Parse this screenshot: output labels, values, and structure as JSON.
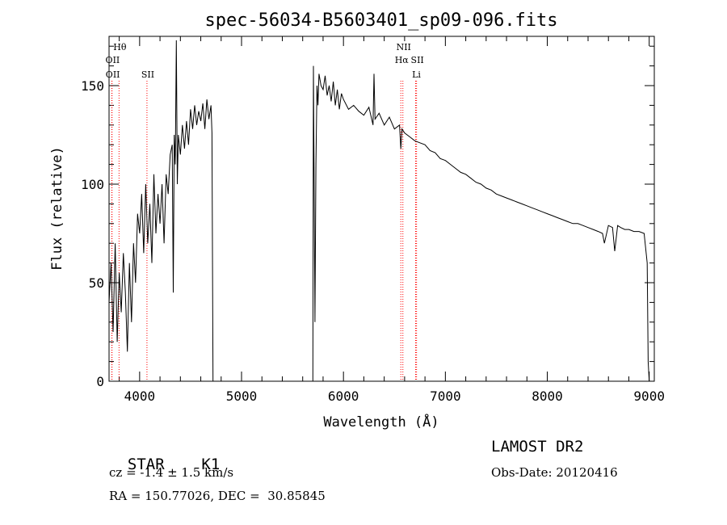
{
  "chart_data": {
    "type": "line",
    "title": "spec-56034-B5603401_sp09-096.fits",
    "xlabel": "Wavelength (Å)",
    "ylabel": "Flux (relative)",
    "xlim": [
      3700,
      9050
    ],
    "ylim": [
      0,
      175
    ],
    "xticks": [
      "4000",
      "5000",
      "6000",
      "7000",
      "8000",
      "9000"
    ],
    "yticks": [
      "0",
      "50",
      "100",
      "150"
    ],
    "grid": false,
    "series": [
      {
        "x": [
          3700,
          3720,
          3740,
          3760,
          3780,
          3800,
          3820,
          3840,
          3860,
          3880,
          3900,
          3920,
          3940,
          3960,
          3980,
          4000,
          4020,
          4040,
          4060,
          4080,
          4100,
          4120,
          4140,
          4160,
          4180,
          4200,
          4220,
          4240,
          4260,
          4280,
          4300,
          4320,
          4330,
          4340,
          4350,
          4360,
          4370,
          4380,
          4400,
          4420,
          4440,
          4460,
          4480,
          4500,
          4520,
          4540,
          4560,
          4580,
          4600,
          4620,
          4640,
          4660,
          4680,
          4700,
          4710,
          4720,
          4725,
          5700,
          5705,
          5720,
          5730,
          5740,
          5750,
          5760,
          5780,
          5800,
          5820,
          5840,
          5860,
          5880,
          5900,
          5920,
          5940,
          5960,
          5980,
          6000,
          6050,
          6100,
          6150,
          6200,
          6250,
          6290,
          6300,
          6310,
          6350,
          6400,
          6450,
          6500,
          6550,
          6563,
          6575,
          6600,
          6650,
          6700,
          6750,
          6800,
          6850,
          6900,
          6950,
          7000,
          7050,
          7100,
          7150,
          7200,
          7250,
          7300,
          7350,
          7400,
          7450,
          7500,
          7550,
          7600,
          7650,
          7700,
          7750,
          7800,
          7850,
          7900,
          7950,
          8000,
          8050,
          8100,
          8150,
          8200,
          8250,
          8300,
          8350,
          8400,
          8450,
          8500,
          8542,
          8560,
          8600,
          8640,
          8662,
          8690,
          8720,
          8760,
          8800,
          8850,
          8900,
          8950,
          8980,
          8990,
          9000
        ],
        "y": [
          40,
          60,
          25,
          70,
          20,
          55,
          35,
          65,
          45,
          15,
          60,
          30,
          70,
          50,
          85,
          75,
          95,
          65,
          100,
          70,
          90,
          60,
          105,
          75,
          95,
          80,
          100,
          70,
          105,
          95,
          115,
          120,
          45,
          125,
          110,
          173,
          100,
          125,
          115,
          130,
          118,
          132,
          120,
          138,
          128,
          140,
          130,
          137,
          132,
          141,
          128,
          143,
          133,
          140,
          126,
          0,
          0,
          0,
          160,
          30,
          110,
          150,
          140,
          156,
          150,
          148,
          155,
          145,
          150,
          142,
          152,
          140,
          148,
          138,
          146,
          143,
          138,
          140,
          137,
          135,
          139,
          130,
          156,
          133,
          136,
          130,
          134,
          128,
          130,
          118,
          128,
          126,
          124,
          122,
          121,
          120,
          117,
          116,
          113,
          112,
          110,
          108,
          106,
          105,
          103,
          101,
          100,
          98,
          97,
          95,
          94,
          93,
          92,
          91,
          90,
          89,
          88,
          87,
          86,
          85,
          84,
          83,
          82,
          81,
          80,
          80,
          79,
          78,
          77,
          76,
          75,
          70,
          79,
          78,
          66,
          79,
          78,
          77,
          77,
          76,
          76,
          75,
          60,
          10,
          0
        ]
      }
    ],
    "spectral_lines": [
      {
        "label": "Hθ",
        "x": 3798,
        "row": 0
      },
      {
        "label": "OII",
        "x": 3727,
        "row": 1
      },
      {
        "label": "OII",
        "x": 3729,
        "row": 2
      },
      {
        "label": "SII",
        "x": 4072,
        "row": 2
      },
      {
        "label": "NII",
        "x": 6583,
        "row": 0
      },
      {
        "label": "Hα",
        "x": 6563,
        "row": 1
      },
      {
        "label": "SII",
        "x": 6717,
        "row": 1
      },
      {
        "label": "Li",
        "x": 6708,
        "row": 2
      }
    ]
  },
  "info": {
    "class": "STAR",
    "subclass": "K1",
    "survey": "LAMOST DR2",
    "redshift": "cz = -1.4 ± 1.5 km/s",
    "obs_date": "Obs-Date: 20120416",
    "coords": "RA = 150.77026, DEC =  30.85845"
  },
  "colors": {
    "spectrum": "#000000",
    "line_marker": "#ff0000"
  }
}
